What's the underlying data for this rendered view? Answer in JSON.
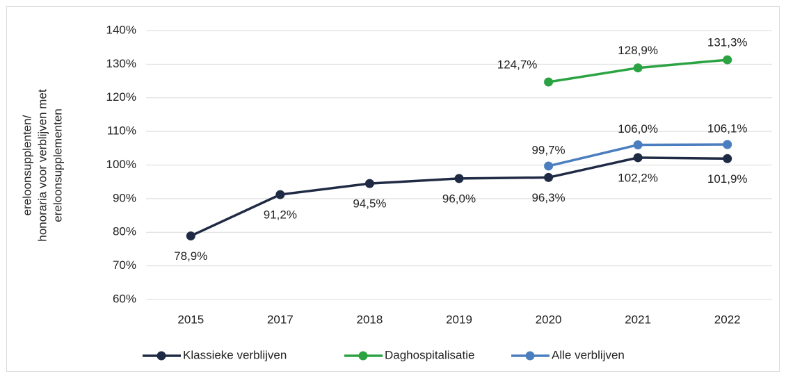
{
  "chart_data": {
    "type": "line",
    "ylabel": [
      "ereloonsupplenten/",
      "honoraria voor verblijven met",
      "ereloonsupplementen"
    ],
    "categories": [
      "2015",
      "2017",
      "2018",
      "2019",
      "2020",
      "2021",
      "2022"
    ],
    "series": [
      {
        "name": "Klassieke verblijven",
        "color": "#1f2a44",
        "values": [
          78.9,
          91.2,
          94.5,
          96.0,
          96.3,
          102.2,
          101.9
        ],
        "value_labels": [
          "78,9%",
          "91,2%",
          "94,5%",
          "96,0%",
          "96,3%",
          "102,2%",
          "101,9%"
        ]
      },
      {
        "name": "Daghospitalisatie",
        "color": "#2ca343",
        "values": [
          null,
          null,
          null,
          null,
          124.7,
          128.9,
          131.3
        ],
        "value_labels": [
          null,
          null,
          null,
          null,
          "124,7%",
          "128,9%",
          "131,3%"
        ]
      },
      {
        "name": "Alle verblijven",
        "color": "#4a7ebf",
        "values": [
          null,
          null,
          null,
          null,
          99.7,
          106.0,
          106.1
        ],
        "value_labels": [
          null,
          null,
          null,
          null,
          "99,7%",
          "106,0%",
          "106,1%"
        ]
      }
    ],
    "ylim": [
      60,
      140
    ],
    "yticks": [
      {
        "value": 60,
        "label": "60%"
      },
      {
        "value": 70,
        "label": "70%"
      },
      {
        "value": 80,
        "label": "80%"
      },
      {
        "value": 90,
        "label": "90%"
      },
      {
        "value": 100,
        "label": "100%"
      },
      {
        "value": 110,
        "label": "110%"
      },
      {
        "value": 120,
        "label": "120%"
      },
      {
        "value": 130,
        "label": "130%"
      },
      {
        "value": 140,
        "label": "140%"
      }
    ],
    "grid": true,
    "legend": "bottom"
  }
}
